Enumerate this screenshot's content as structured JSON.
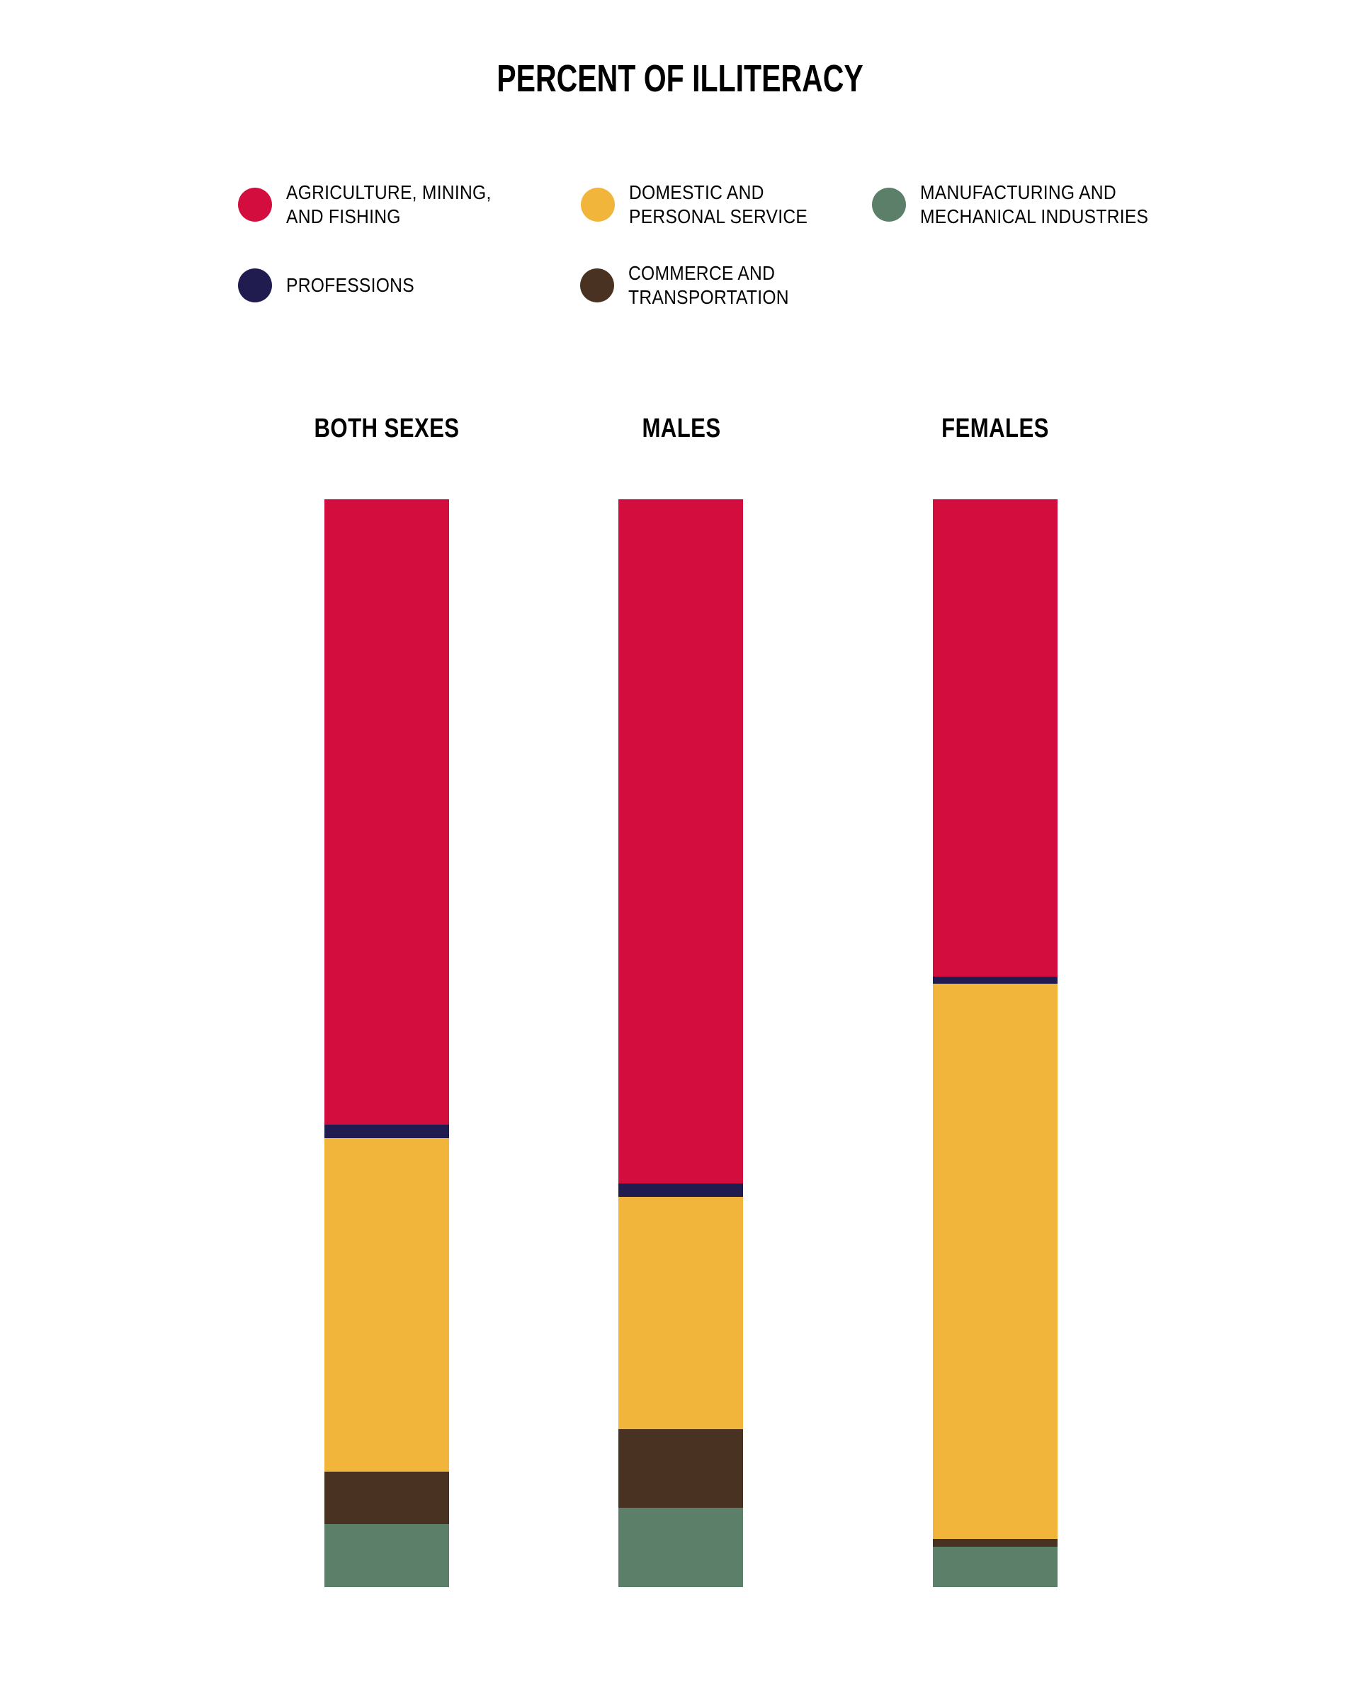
{
  "title": "PERCENT OF ILLITERACY",
  "colors": {
    "background": "#ffffff",
    "text": "#000000",
    "agriculture": "#d30e3e",
    "domestic": "#f2b53c",
    "manufacturing": "#5c7f6a",
    "professions": "#211c50",
    "commerce": "#4a3222"
  },
  "legend": {
    "items": [
      {
        "id": "agriculture",
        "label": "AGRICULTURE, MINING,\nAND FISHING"
      },
      {
        "id": "domestic",
        "label": "DOMESTIC AND\nPERSONAL SERVICE"
      },
      {
        "id": "manufacturing",
        "label": "MANUFACTURING AND\nMECHANICAL INDUSTRIES"
      },
      {
        "id": "professions",
        "label": "PROFESSIONS"
      },
      {
        "id": "commerce",
        "label": "COMMERCE AND\nTRANSPORTATION"
      }
    ]
  },
  "chart_data": {
    "type": "bar",
    "stacked": true,
    "values_are": "percent",
    "title": "PERCENT OF ILLITERACY",
    "legend_position": "top",
    "axes": "none",
    "grid": false,
    "categories": [
      "BOTH SEXES",
      "MALES",
      "FEMALES"
    ],
    "series": [
      {
        "id": "agriculture",
        "name": "AGRICULTURE, MINING, AND FISHING",
        "color": "#d30e3e",
        "values": [
          57.5,
          62.9,
          43.9
        ]
      },
      {
        "id": "professions",
        "name": "PROFESSIONS",
        "color": "#211c50",
        "values": [
          1.2,
          1.2,
          0.6
        ]
      },
      {
        "id": "domestic",
        "name": "DOMESTIC AND PERSONAL SERVICE",
        "color": "#f2b53c",
        "values": [
          30.7,
          21.4,
          51.1
        ]
      },
      {
        "id": "commerce",
        "name": "COMMERCE AND TRANSPORTATION",
        "color": "#4a3222",
        "values": [
          4.8,
          7.2,
          0.7
        ]
      },
      {
        "id": "manufacturing",
        "name": "MANUFACTURING AND MECHANICAL INDUSTRIES",
        "color": "#5c7f6a",
        "values": [
          5.8,
          7.3,
          3.7
        ]
      }
    ],
    "stack_order_top_to_bottom": [
      "agriculture",
      "professions",
      "domestic",
      "commerce",
      "manufacturing"
    ]
  }
}
